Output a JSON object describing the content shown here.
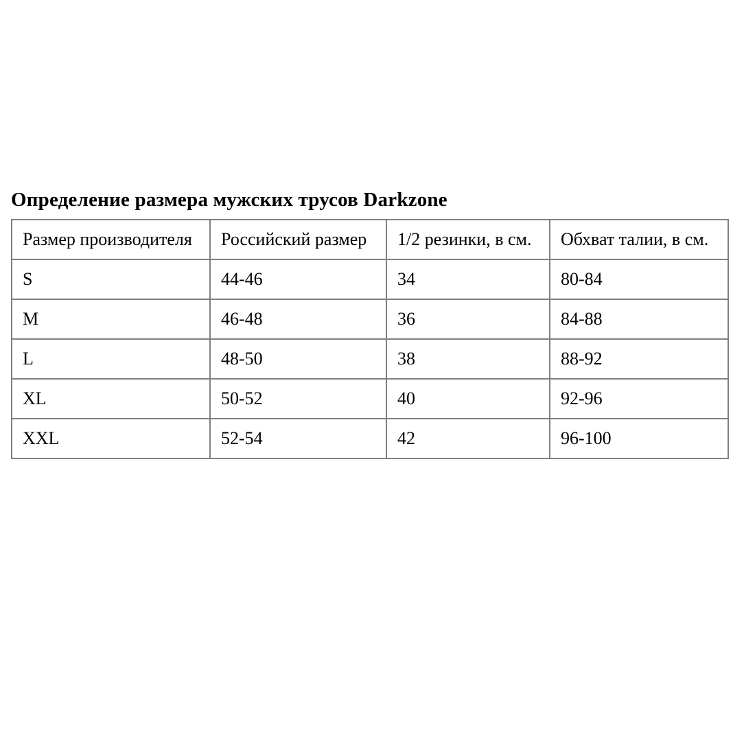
{
  "page": {
    "title": "Определение размера мужских трусов Darkzone"
  },
  "colors": {
    "table_border": "#808080",
    "text": "#000000",
    "background": "#ffffff"
  },
  "table": {
    "columns": [
      "Размер производителя",
      "Российский размер",
      "1/2 резинки, в см.",
      "Обхват талии, в см."
    ],
    "rows": [
      {
        "cells": [
          "S",
          "44-46",
          "34",
          "80-84"
        ]
      },
      {
        "cells": [
          "M",
          "46-48",
          "36",
          "84-88"
        ]
      },
      {
        "cells": [
          "L",
          "48-50",
          "38",
          "88-92"
        ]
      },
      {
        "cells": [
          "XL",
          "50-52",
          "40",
          "92-96"
        ]
      },
      {
        "cells": [
          "XXL",
          "52-54",
          "42",
          "96-100"
        ]
      }
    ]
  }
}
